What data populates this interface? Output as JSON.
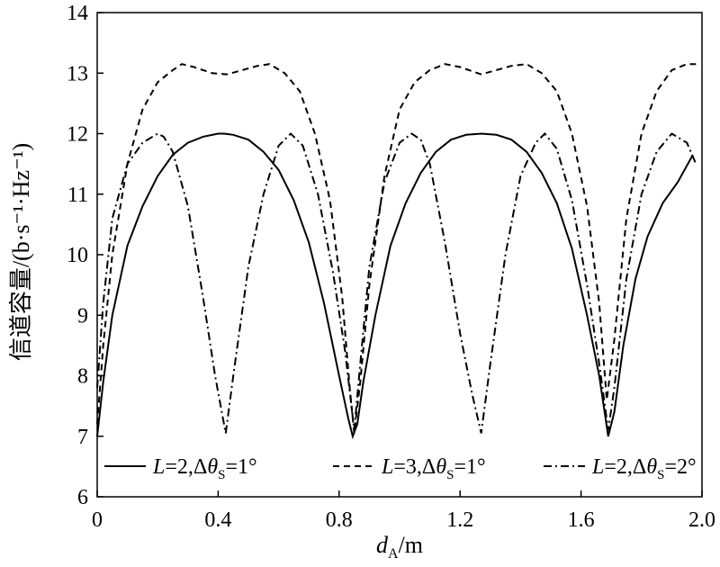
{
  "chart_data": {
    "type": "line",
    "ylabel": "信道容量/(b·s⁻¹·Hz⁻¹)",
    "xlabel_main": "d",
    "xlabel_sub": "A",
    "xlabel_unit": "/m",
    "xlim": [
      0,
      2.0
    ],
    "ylim": [
      6,
      14
    ],
    "xticks": [
      "0",
      "0.4",
      "0.8",
      "1.2",
      "1.6",
      "2.0"
    ],
    "xtick_values": [
      0,
      0.4,
      0.8,
      1.2,
      1.6,
      2.0
    ],
    "yticks": [
      "6",
      "7",
      "8",
      "9",
      "10",
      "11",
      "12",
      "13",
      "14"
    ],
    "ytick_values": [
      6,
      7,
      8,
      9,
      10,
      11,
      12,
      13,
      14
    ],
    "grid": false,
    "legend_position": "bottom",
    "series": [
      {
        "name": "L=2,Δθ_S=1°",
        "legend": {
          "prefix": "L",
          "mid": "=2,Δθ",
          "sub": "S",
          "suffix": "=1°"
        },
        "dash": "solid",
        "x": [
          0,
          0.02,
          0.05,
          0.1,
          0.15,
          0.2,
          0.25,
          0.3,
          0.35,
          0.4,
          0.42,
          0.45,
          0.5,
          0.55,
          0.6,
          0.65,
          0.7,
          0.75,
          0.8,
          0.83,
          0.845,
          0.86,
          0.88,
          0.92,
          0.97,
          1.02,
          1.07,
          1.12,
          1.17,
          1.22,
          1.27,
          1.32,
          1.37,
          1.42,
          1.47,
          1.52,
          1.57,
          1.62,
          1.66,
          1.69,
          1.71,
          1.74,
          1.78,
          1.82,
          1.87,
          1.92,
          1.97
        ],
        "y": [
          7.0,
          7.9,
          9.0,
          10.15,
          10.8,
          11.3,
          11.65,
          11.85,
          11.95,
          12.0,
          12.0,
          11.98,
          11.9,
          11.7,
          11.4,
          10.9,
          10.2,
          9.2,
          8.0,
          7.3,
          7.0,
          7.2,
          7.9,
          9.0,
          10.15,
          10.85,
          11.35,
          11.7,
          11.9,
          11.98,
          12.0,
          11.98,
          11.9,
          11.7,
          11.35,
          10.85,
          10.1,
          9.0,
          8.0,
          7.0,
          7.4,
          8.5,
          9.6,
          10.3,
          10.85,
          11.2,
          11.65
        ]
      },
      {
        "name": "L=3,Δθ_S=1°",
        "legend": {
          "prefix": "L",
          "mid": "=3,Δθ",
          "sub": "S",
          "suffix": "=1°"
        },
        "dash": "7,5",
        "x": [
          0,
          0.02,
          0.05,
          0.1,
          0.15,
          0.2,
          0.25,
          0.28,
          0.32,
          0.38,
          0.43,
          0.48,
          0.53,
          0.57,
          0.62,
          0.67,
          0.72,
          0.77,
          0.81,
          0.835,
          0.85,
          0.87,
          0.9,
          0.95,
          1.0,
          1.05,
          1.1,
          1.15,
          1.2,
          1.27,
          1.32,
          1.37,
          1.42,
          1.47,
          1.52,
          1.57,
          1.62,
          1.66,
          1.685,
          1.71,
          1.75,
          1.8,
          1.85,
          1.9,
          1.95,
          1.98
        ],
        "y": [
          7.2,
          8.5,
          10.0,
          11.5,
          12.4,
          12.85,
          13.05,
          13.15,
          13.1,
          13.0,
          12.98,
          13.05,
          13.12,
          13.15,
          13.0,
          12.7,
          12.0,
          10.9,
          9.3,
          7.8,
          7.05,
          7.9,
          9.5,
          11.3,
          12.4,
          12.85,
          13.05,
          13.15,
          13.1,
          12.98,
          13.05,
          13.12,
          13.15,
          13.0,
          12.7,
          12.0,
          10.8,
          9.2,
          7.6,
          8.6,
          10.6,
          12.0,
          12.7,
          13.05,
          13.15,
          13.15
        ]
      },
      {
        "name": "L=2,Δθ_S=2°",
        "legend": {
          "prefix": "L",
          "mid": "=2,Δθ",
          "sub": "S",
          "suffix": "=2°"
        },
        "dash": "9,4,2,4",
        "x": [
          0,
          0.02,
          0.05,
          0.1,
          0.15,
          0.2,
          0.22,
          0.25,
          0.3,
          0.35,
          0.39,
          0.425,
          0.45,
          0.5,
          0.55,
          0.6,
          0.64,
          0.68,
          0.73,
          0.78,
          0.82,
          0.85,
          0.87,
          0.9,
          0.95,
          1.0,
          1.04,
          1.07,
          1.1,
          1.15,
          1.2,
          1.24,
          1.27,
          1.3,
          1.35,
          1.4,
          1.45,
          1.48,
          1.52,
          1.57,
          1.62,
          1.66,
          1.69,
          1.71,
          1.75,
          1.8,
          1.85,
          1.9,
          1.95,
          1.98
        ],
        "y": [
          7.8,
          9.2,
          10.6,
          11.5,
          11.85,
          12.0,
          11.95,
          11.7,
          10.8,
          9.3,
          8.0,
          7.05,
          8.0,
          9.8,
          11.0,
          11.8,
          12.0,
          11.8,
          11.0,
          9.7,
          8.4,
          7.1,
          8.2,
          9.8,
          11.2,
          11.85,
          12.0,
          11.9,
          11.5,
          10.2,
          8.7,
          7.7,
          7.05,
          8.2,
          10.0,
          11.3,
          11.85,
          12.0,
          11.75,
          10.9,
          9.5,
          8.2,
          7.1,
          7.8,
          9.6,
          11.0,
          11.7,
          12.0,
          11.85,
          11.5
        ]
      }
    ]
  }
}
